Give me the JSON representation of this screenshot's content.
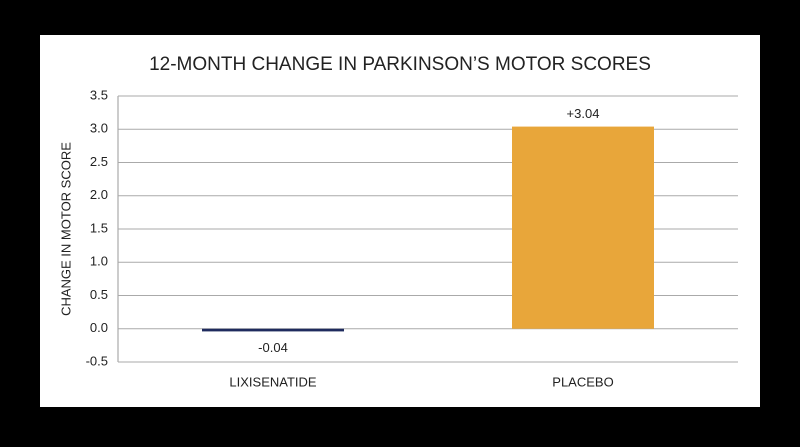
{
  "chart_data": {
    "type": "bar",
    "title": "12-MONTH CHANGE IN PARKINSON’S MOTOR SCORES",
    "y_label": "CHANGE IN MOTOR SCORE",
    "categories": [
      "LIXISENATIDE",
      "PLACEBO"
    ],
    "values": [
      -0.04,
      3.04
    ],
    "value_labels": [
      "-0.04",
      "+3.04"
    ],
    "colors": [
      "#1f2b5e",
      "#e8a63a"
    ],
    "ylim": [
      -0.5,
      3.5
    ],
    "yticks": [
      -0.5,
      {
        "value": 0,
        "label": "0.0"
      },
      0.5,
      {
        "value": 1,
        "label": "1.0"
      },
      1.5,
      {
        "value": 2,
        "label": "2.0"
      },
      2.5,
      {
        "value": 3,
        "label": "3.0"
      },
      3.5
    ],
    "grid": true
  }
}
